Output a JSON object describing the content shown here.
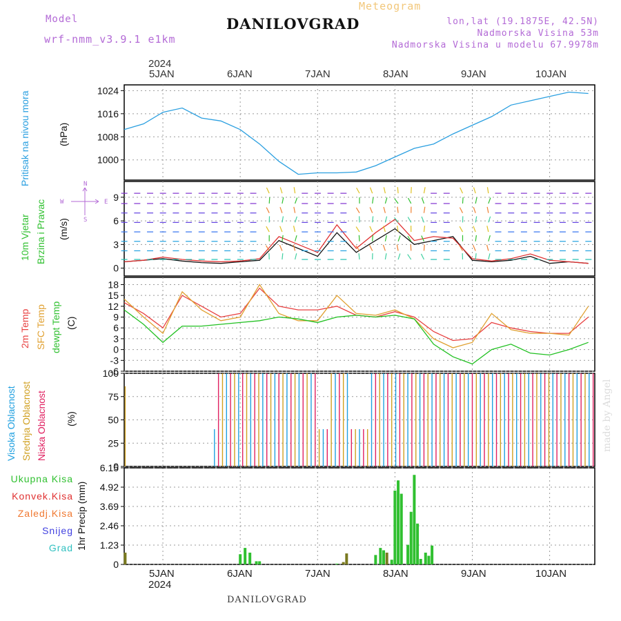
{
  "header": {
    "model_label": "Model",
    "model_name": "wrf-nmm_v3.9.1 e1km",
    "meteogram_label": "Meteogram",
    "station": "DANILOVGRAD",
    "lonlat": "lon,lat (19.1875E, 42.5N)",
    "elevation": "Nadmorska Visina 53m",
    "model_elevation": "Nadmorska Visina u modelu 67.9978m"
  },
  "footer": {
    "station": "DANILOVGRAD",
    "watermark": "made by Angel"
  },
  "colors": {
    "pressure": "#2a9fe0",
    "wind_speed": "#111111",
    "wind_gust": "#e03030",
    "temp2m": "#e84040",
    "sfc_temp": "#e0a030",
    "dewpoint": "#20c020",
    "high_cloud": "#20a0e0",
    "mid_cloud": "#d0a020",
    "low_cloud": "#e02060",
    "total_precip": "#30c030",
    "conv_precip": "#e03030",
    "frozen_precip": "#f07830",
    "snow": "#4040e0",
    "hail": "#30c0c0"
  },
  "time_axis": {
    "year": "2024",
    "days": [
      "5JAN",
      "6JAN",
      "7JAN",
      "8JAN",
      "9JAN",
      "10JAN"
    ]
  },
  "chart_data": [
    {
      "type": "line",
      "panel": "pressure",
      "ylabel_1": "Pritisak na nivou mora",
      "ylabel_2": "(hPa)",
      "ylim": [
        993,
        1026
      ],
      "yticks": [
        "1000",
        "1008",
        "1016",
        "1024"
      ],
      "x_hours_from_4jan_12z": [
        0,
        6,
        12,
        18,
        24,
        30,
        36,
        42,
        48,
        54,
        60,
        66,
        72,
        78,
        84,
        90,
        96,
        102,
        108,
        114,
        120,
        126,
        132,
        138,
        144
      ],
      "series": [
        {
          "values": [
            1010.5,
            1012.5,
            1016.5,
            1018,
            1014.5,
            1013.5,
            1010.5,
            1005.5,
            999.5,
            995,
            995.5,
            995.5,
            995.8,
            998,
            1001,
            1004,
            1005.5,
            1009,
            1012,
            1015,
            1019,
            1020.5,
            1022,
            1023.5,
            1023
          ]
        }
      ]
    },
    {
      "type": "line",
      "panel": "wind",
      "ylabel_1": "10m Vjetar",
      "ylabel_2": "Brzina i Pravac",
      "ylabel_3": "(m/s)",
      "compass": {
        "n": "N",
        "s": "S",
        "e": "E",
        "w": "W"
      },
      "ylim": [
        -1,
        11
      ],
      "yticks": [
        "0",
        "3",
        "6",
        "9"
      ],
      "x_hours_from_4jan_12z": [
        0,
        6,
        12,
        18,
        24,
        30,
        36,
        42,
        48,
        54,
        60,
        66,
        72,
        78,
        84,
        90,
        96,
        102,
        108,
        114,
        120,
        126,
        132,
        138,
        144
      ],
      "series": [
        {
          "values": [
            0.8,
            1,
            1.2,
            0.9,
            0.7,
            0.6,
            0.8,
            1,
            3.5,
            2.5,
            1.5,
            4.5,
            2,
            3.5,
            5,
            3,
            3.5,
            4,
            1,
            0.8,
            1,
            1.5,
            0.6,
            0.8,
            0.6
          ]
        },
        {
          "values": [
            0.8,
            1,
            1.4,
            1.1,
            0.9,
            0.8,
            0.9,
            1.2,
            4,
            3,
            2,
            5.5,
            2.5,
            4.5,
            6.2,
            3.5,
            4,
            3.8,
            1.2,
            0.9,
            1.2,
            1.8,
            1,
            0.8,
            0.6
          ]
        }
      ]
    },
    {
      "type": "line",
      "panel": "temperature",
      "ylabel_1": "2m Temp",
      "ylabel_2": "SFC Temp",
      "ylabel_3": "dewpt Temp",
      "ylabel_4": "(C)",
      "ylim": [
        -6,
        20
      ],
      "yticks": [
        "-6",
        "-3",
        "0",
        "3",
        "6",
        "9",
        "12",
        "15",
        "18"
      ],
      "x_hours_from_4jan_12z": [
        0,
        6,
        12,
        18,
        24,
        30,
        36,
        42,
        48,
        54,
        60,
        66,
        72,
        78,
        84,
        90,
        96,
        102,
        108,
        114,
        120,
        126,
        132,
        138,
        144
      ],
      "series": [
        {
          "values": [
            13,
            10,
            6,
            15,
            12,
            9,
            10,
            17,
            12,
            11,
            11,
            12,
            9.5,
            9,
            10.5,
            9,
            5,
            2.5,
            3,
            7.5,
            6,
            5,
            4.5,
            4.5,
            9
          ]
        },
        {
          "values": [
            14,
            9,
            4.5,
            16,
            11,
            8,
            9,
            18,
            10,
            8,
            8,
            15,
            10,
            9.5,
            11,
            8.5,
            3,
            0.5,
            2,
            10,
            5.5,
            4.5,
            4.5,
            4,
            12
          ]
        },
        {
          "values": [
            11,
            7,
            2,
            6.5,
            6.5,
            7,
            7.5,
            8,
            9,
            8.5,
            7.5,
            9,
            9.5,
            9,
            9.5,
            8.5,
            1.5,
            -2,
            -4,
            0,
            1.5,
            -1,
            -1.5,
            0,
            2
          ]
        }
      ]
    },
    {
      "type": "bar",
      "panel": "clouds",
      "ylabel_1": "Visoka Oblacnost",
      "ylabel_2": "Srednja Oblacnost",
      "ylabel_3": "Niska Oblacnost",
      "ylabel_4": "(%)",
      "ylim": [
        0,
        100
      ],
      "yticks": [
        "0",
        "25",
        "50",
        "75",
        "100"
      ]
    },
    {
      "type": "bar",
      "panel": "precip",
      "ylabel": "1hr Precip (mm)",
      "ylim": [
        0,
        6.15
      ],
      "yticks": [
        "0",
        "1.23",
        "2.46",
        "3.69",
        "4.92",
        "6.15"
      ],
      "legend": [
        "Ukupna Kisa",
        "Konvek.Kisa",
        "Zaledj.Kisa",
        "Snijeg",
        "Grad"
      ],
      "bars": [
        {
          "x": 0.3,
          "value": 0.75
        },
        {
          "x": 36,
          "value": 0.65
        },
        {
          "x": 37.5,
          "value": 1.05
        },
        {
          "x": 39,
          "value": 0.75
        },
        {
          "x": 41,
          "value": 0.2
        },
        {
          "x": 42,
          "value": 0.2
        },
        {
          "x": 66,
          "value": 0.05
        },
        {
          "x": 68,
          "value": 0.15
        },
        {
          "x": 69,
          "value": 0.7
        },
        {
          "x": 78,
          "value": 0.6
        },
        {
          "x": 79.5,
          "value": 1.05
        },
        {
          "x": 80.5,
          "value": 0.9
        },
        {
          "x": 81.5,
          "value": 0.75
        },
        {
          "x": 83,
          "value": 0.3
        },
        {
          "x": 84,
          "value": 4.7
        },
        {
          "x": 85,
          "value": 5.35
        },
        {
          "x": 86,
          "value": 4.5
        },
        {
          "x": 88,
          "value": 1.25
        },
        {
          "x": 89,
          "value": 3.35
        },
        {
          "x": 90,
          "value": 5.7
        },
        {
          "x": 91,
          "value": 2.6
        },
        {
          "x": 92,
          "value": 0.35
        },
        {
          "x": 93.5,
          "value": 0.75
        },
        {
          "x": 94.5,
          "value": 0.55
        },
        {
          "x": 95.5,
          "value": 1.2
        }
      ]
    }
  ]
}
